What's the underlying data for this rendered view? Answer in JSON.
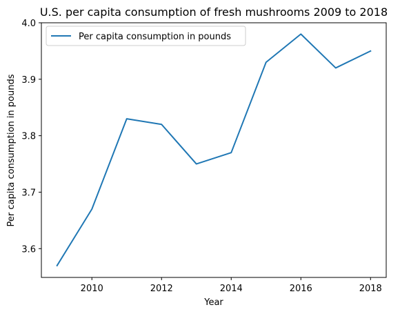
{
  "chart_data": {
    "type": "line",
    "title": "U.S. per capita consumption of fresh mushrooms 2009 to 2018",
    "xlabel": "Year",
    "ylabel": "Per capita consumption in pounds",
    "x": [
      2009,
      2010,
      2011,
      2012,
      2013,
      2014,
      2015,
      2016,
      2017,
      2018
    ],
    "series": [
      {
        "name": "Per capita consumption in pounds",
        "values": [
          3.57,
          3.67,
          3.83,
          3.82,
          3.75,
          3.77,
          3.93,
          3.98,
          3.92,
          3.95
        ],
        "color": "#1f77b4"
      }
    ],
    "xlim": [
      2008.55,
      2018.45
    ],
    "ylim": [
      3.549,
      4.0
    ],
    "xticks": [
      2010,
      2012,
      2014,
      2016,
      2018
    ],
    "xtick_labels": [
      "2010",
      "2012",
      "2014",
      "2016",
      "2018"
    ],
    "yticks": [
      3.6,
      3.7,
      3.8,
      3.9,
      4.0
    ],
    "ytick_labels": [
      "3.6",
      "3.7",
      "3.8",
      "3.9",
      "4.0"
    ],
    "grid": false,
    "legend_position": "top-left"
  }
}
